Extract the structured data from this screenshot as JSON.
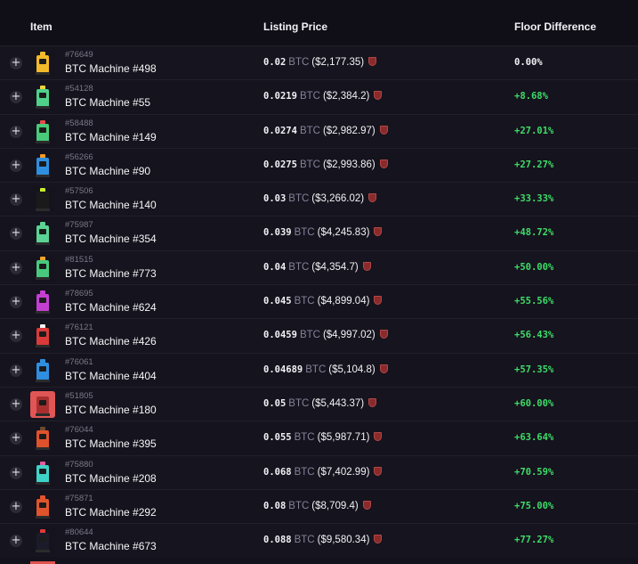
{
  "header": {
    "item": "Item",
    "listing_price": "Listing Price",
    "floor_difference": "Floor Difference"
  },
  "colors": {
    "positive": "#3ddc68",
    "background": "#14121c"
  },
  "rows": [
    {
      "id": "#76649",
      "name": "BTC Machine #498",
      "price": "0.02",
      "currency": "BTC",
      "usd": "($2,177.35)",
      "diff": "0.00%",
      "thumb": {
        "bg": "#15131d",
        "body": "#f2b92a",
        "top": "#f2b92a"
      }
    },
    {
      "id": "#54128",
      "name": "BTC Machine #55",
      "price": "0.0219",
      "currency": "BTC",
      "usd": "($2,384.2)",
      "diff": "+8.68%",
      "thumb": {
        "bg": "#15131d",
        "body": "#4fd18a",
        "top": "#f5d13b"
      }
    },
    {
      "id": "#58488",
      "name": "BTC Machine #149",
      "price": "0.0274",
      "currency": "BTC",
      "usd": "($2,982.97)",
      "diff": "+27.01%",
      "thumb": {
        "bg": "#15131d",
        "body": "#49c979",
        "top": "#e24b4b"
      }
    },
    {
      "id": "#56266",
      "name": "BTC Machine #90",
      "price": "0.0275",
      "currency": "BTC",
      "usd": "($2,993.86)",
      "diff": "+27.27%",
      "thumb": {
        "bg": "#15131d",
        "body": "#2e8fe0",
        "top": "#f09a27"
      }
    },
    {
      "id": "#57506",
      "name": "BTC Machine #140",
      "price": "0.03",
      "currency": "BTC",
      "usd": "($3,266.02)",
      "diff": "+33.33%",
      "thumb": {
        "bg": "#15131d",
        "body": "#1a1a1a",
        "top": "#c7f02a"
      }
    },
    {
      "id": "#75987",
      "name": "BTC Machine #354",
      "price": "0.039",
      "currency": "BTC",
      "usd": "($4,245.83)",
      "diff": "+48.72%",
      "thumb": {
        "bg": "#15131d",
        "body": "#5ad394",
        "top": "#5ad394"
      }
    },
    {
      "id": "#81515",
      "name": "BTC Machine #773",
      "price": "0.04",
      "currency": "BTC",
      "usd": "($4,354.7)",
      "diff": "+50.00%",
      "thumb": {
        "bg": "#15131d",
        "body": "#49c97e",
        "top": "#f0a427"
      }
    },
    {
      "id": "#78695",
      "name": "BTC Machine #624",
      "price": "0.045",
      "currency": "BTC",
      "usd": "($4,899.04)",
      "diff": "+55.56%",
      "thumb": {
        "bg": "#15131d",
        "body": "#c43fd1",
        "top": "#c43fd1"
      }
    },
    {
      "id": "#76121",
      "name": "BTC Machine #426",
      "price": "0.0459",
      "currency": "BTC",
      "usd": "($4,997.02)",
      "diff": "+56.43%",
      "thumb": {
        "bg": "#15131d",
        "body": "#d93a3a",
        "top": "#f4f4f4"
      }
    },
    {
      "id": "#76061",
      "name": "BTC Machine #404",
      "price": "0.04689",
      "currency": "BTC",
      "usd": "($5,104.8)",
      "diff": "+57.35%",
      "thumb": {
        "bg": "#15131d",
        "body": "#2f8ee0",
        "top": "#2f8ee0"
      }
    },
    {
      "id": "#51805",
      "name": "BTC Machine #180",
      "price": "0.05",
      "currency": "BTC",
      "usd": "($5,443.37)",
      "diff": "+60.00%",
      "thumb": {
        "bg": "#e05656",
        "body": "#a82f2f",
        "top": "#e05656"
      }
    },
    {
      "id": "#76044",
      "name": "BTC Machine #395",
      "price": "0.055",
      "currency": "BTC",
      "usd": "($5,987.71)",
      "diff": "+63.64%",
      "thumb": {
        "bg": "#15131d",
        "body": "#e0522c",
        "top": "#6b4a2f"
      }
    },
    {
      "id": "#75880",
      "name": "BTC Machine #208",
      "price": "0.068",
      "currency": "BTC",
      "usd": "($7,402.99)",
      "diff": "+70.59%",
      "thumb": {
        "bg": "#15131d",
        "body": "#3fd2c7",
        "top": "#e05ca0"
      }
    },
    {
      "id": "#75871",
      "name": "BTC Machine #292",
      "price": "0.08",
      "currency": "BTC",
      "usd": "($8,709.4)",
      "diff": "+75.00%",
      "thumb": {
        "bg": "#15131d",
        "body": "#e0542c",
        "top": "#e0542c"
      }
    },
    {
      "id": "#80644",
      "name": "BTC Machine #673",
      "price": "0.088",
      "currency": "BTC",
      "usd": "($9,580.34)",
      "diff": "+77.27%",
      "thumb": {
        "bg": "#15131d",
        "body": "#1b1b2a",
        "top": "#e03a3a"
      }
    }
  ]
}
